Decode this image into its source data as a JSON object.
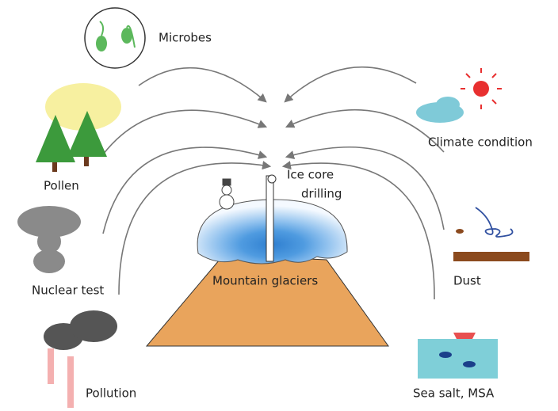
{
  "sources": [
    {
      "label": "Microbes"
    },
    {
      "label": "Pollen"
    },
    {
      "label": "Nuclear test"
    },
    {
      "label": "Pollution"
    },
    {
      "label": "Climate condition"
    },
    {
      "label": "Dust"
    },
    {
      "label": "Sea salt, MSA"
    }
  ],
  "drill": {
    "label_lines": [
      "Ice core",
      "drilling"
    ]
  },
  "center": {
    "label": "Mountain glaciers"
  }
}
